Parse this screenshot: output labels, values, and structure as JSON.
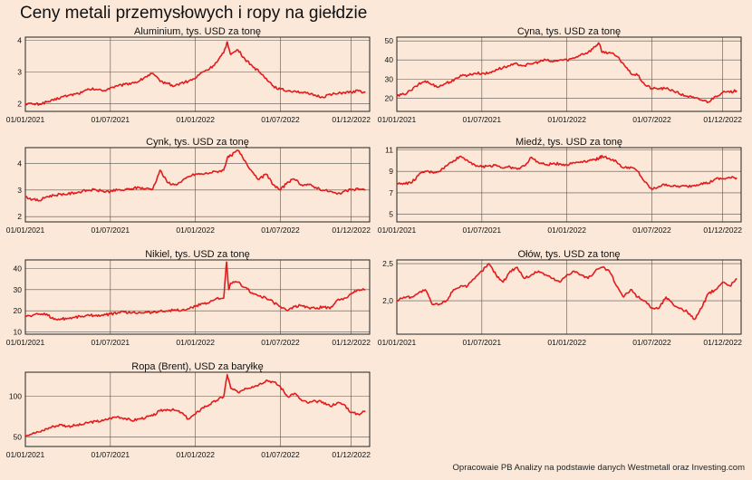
{
  "title": "Ceny metali przemysłowych i ropy na giełdzie",
  "source": "Opracowaie PB Analizy na podstawie danych Westmetall oraz Investing.com",
  "colors": {
    "line": "#e41a1c",
    "background": "#fbe8d8",
    "grid": "#555555",
    "frame": "#222222"
  },
  "chart_data": [
    {
      "type": "line",
      "title": "Aluminium, tys. USD za tonę",
      "x_ticks": [
        "01/01/2021",
        "01/07/2021",
        "01/01/2022",
        "01/07/2022",
        "01/12/2022"
      ],
      "x_tick_months": [
        0,
        6,
        12,
        18,
        23
      ],
      "x_range_months": [
        0,
        24.3
      ],
      "ylim": [
        1.75,
        4.1
      ],
      "y_ticks": [
        "2",
        "3",
        "4"
      ],
      "y_tick_values": [
        2,
        3,
        4
      ],
      "grid": true,
      "series": [
        {
          "x_months": [
            0,
            0.5,
            1,
            1.5,
            2,
            2.5,
            3,
            3.5,
            4,
            4.5,
            5,
            5.5,
            6,
            6.5,
            7,
            7.5,
            8,
            8.5,
            9,
            9.5,
            10,
            10.5,
            11,
            11.5,
            12,
            12.5,
            13,
            13.5,
            14,
            14.25,
            14.5,
            15,
            15.5,
            16,
            16.5,
            17,
            17.5,
            18,
            18.5,
            19,
            19.5,
            20,
            20.5,
            21,
            21.5,
            22,
            22.5,
            23,
            23.5,
            24
          ],
          "values": [
            2.0,
            1.98,
            1.98,
            2.05,
            2.1,
            2.2,
            2.25,
            2.3,
            2.35,
            2.45,
            2.45,
            2.4,
            2.5,
            2.55,
            2.6,
            2.65,
            2.7,
            2.85,
            2.95,
            2.7,
            2.65,
            2.55,
            2.65,
            2.7,
            2.8,
            3.0,
            3.1,
            3.3,
            3.6,
            3.95,
            3.55,
            3.7,
            3.4,
            3.2,
            3.0,
            2.8,
            2.55,
            2.45,
            2.4,
            2.4,
            2.35,
            2.3,
            2.25,
            2.2,
            2.3,
            2.3,
            2.35,
            2.35,
            2.4,
            2.35
          ]
        }
      ]
    },
    {
      "type": "line",
      "title": "Cyna, tys. USD za tonę",
      "x_ticks": [
        "01/01/2021",
        "01/07/2021",
        "01/01/2022",
        "01/07/2022",
        "01/12/2022"
      ],
      "x_tick_months": [
        0,
        6,
        12,
        18,
        23
      ],
      "x_range_months": [
        0,
        24.3
      ],
      "ylim": [
        13,
        52
      ],
      "y_ticks": [
        "20",
        "30",
        "40",
        "50"
      ],
      "y_tick_values": [
        20,
        30,
        40,
        50
      ],
      "grid": true,
      "series": [
        {
          "x_months": [
            0,
            0.5,
            1,
            1.5,
            2,
            2.5,
            3,
            3.5,
            4,
            4.5,
            5,
            5.5,
            6,
            6.5,
            7,
            7.5,
            8,
            8.5,
            9,
            9.5,
            10,
            10.5,
            11,
            11.5,
            12,
            12.5,
            13,
            13.5,
            14,
            14.25,
            14.5,
            15,
            15.5,
            16,
            16.5,
            17,
            17.5,
            18,
            18.5,
            19,
            19.5,
            20,
            20.5,
            21,
            21.5,
            22,
            22.5,
            23,
            23.5,
            24
          ],
          "values": [
            21,
            22,
            24,
            27,
            29,
            27,
            26,
            28,
            29,
            32,
            32,
            33,
            33,
            33,
            35,
            36,
            37,
            38,
            37,
            38,
            39,
            40,
            39,
            40,
            40,
            41,
            43,
            44,
            47,
            49,
            44,
            44,
            42,
            38,
            33,
            32,
            27,
            25,
            25,
            25,
            24,
            22,
            21,
            20,
            19,
            18,
            21,
            23,
            23,
            24
          ]
        }
      ]
    },
    {
      "type": "line",
      "title": "Cynk, tys. USD za tonę",
      "x_ticks": [
        "01/01/2021",
        "01/07/2021",
        "01/01/2022",
        "01/07/2022",
        "01/12/2022"
      ],
      "x_tick_months": [
        0,
        6,
        12,
        18,
        23
      ],
      "x_range_months": [
        0,
        24.3
      ],
      "ylim": [
        1.8,
        4.6
      ],
      "y_ticks": [
        "2",
        "3",
        "4"
      ],
      "y_tick_values": [
        2,
        3,
        4
      ],
      "grid": true,
      "series": [
        {
          "x_months": [
            0,
            0.5,
            1,
            1.5,
            2,
            2.5,
            3,
            3.5,
            4,
            4.5,
            5,
            5.5,
            6,
            6.5,
            7,
            7.5,
            8,
            8.5,
            9,
            9.5,
            10,
            10.5,
            11,
            11.5,
            12,
            12.5,
            13,
            13.5,
            14,
            14.25,
            14.5,
            15,
            15.5,
            16,
            16.5,
            17,
            17.5,
            18,
            18.5,
            19,
            19.5,
            20,
            20.5,
            21,
            21.5,
            22,
            22.5,
            23,
            23.5,
            24
          ],
          "values": [
            2.75,
            2.65,
            2.6,
            2.75,
            2.8,
            2.85,
            2.85,
            2.9,
            2.95,
            3.0,
            3.0,
            2.95,
            2.95,
            3.0,
            3.0,
            3.05,
            3.1,
            3.05,
            3.05,
            3.75,
            3.3,
            3.2,
            3.3,
            3.5,
            3.6,
            3.6,
            3.65,
            3.7,
            3.75,
            4.2,
            4.3,
            4.5,
            4.1,
            3.7,
            3.4,
            3.6,
            3.2,
            3.0,
            3.3,
            3.4,
            3.2,
            3.2,
            3.1,
            3.0,
            2.95,
            2.85,
            2.95,
            3.0,
            3.05,
            3.0
          ]
        }
      ]
    },
    {
      "type": "line",
      "title": "Miedź, tys. USD za tonę",
      "x_ticks": [
        "01/01/2021",
        "01/07/2021",
        "01/01/2022",
        "01/07/2022",
        "01/12/2022"
      ],
      "x_tick_months": [
        0,
        6,
        12,
        18,
        23
      ],
      "x_range_months": [
        0,
        24.3
      ],
      "ylim": [
        4.3,
        11.2
      ],
      "y_ticks": [
        "5",
        "7",
        "9",
        "11"
      ],
      "y_tick_values": [
        5,
        7,
        9,
        11
      ],
      "grid": true,
      "series": [
        {
          "x_months": [
            0,
            0.5,
            1,
            1.5,
            2,
            2.5,
            3,
            3.5,
            4,
            4.5,
            5,
            5.5,
            6,
            6.5,
            7,
            7.5,
            8,
            8.5,
            9,
            9.5,
            10,
            10.5,
            11,
            11.5,
            12,
            12.5,
            13,
            13.5,
            14,
            14.25,
            14.5,
            15,
            15.5,
            16,
            16.5,
            17,
            17.5,
            18,
            18.5,
            19,
            19.5,
            20,
            20.5,
            21,
            21.5,
            22,
            22.5,
            23,
            23.5,
            24
          ],
          "values": [
            7.8,
            7.9,
            7.9,
            8.6,
            9.0,
            8.9,
            9.0,
            9.5,
            10.0,
            10.4,
            10.0,
            9.6,
            9.4,
            9.5,
            9.6,
            9.3,
            9.4,
            9.2,
            9.5,
            10.3,
            9.8,
            9.6,
            9.7,
            9.7,
            9.6,
            9.8,
            9.9,
            10.0,
            10.1,
            10.2,
            10.4,
            10.2,
            9.9,
            9.3,
            9.4,
            9.0,
            8.0,
            7.3,
            7.6,
            7.8,
            7.6,
            7.6,
            7.6,
            7.7,
            7.9,
            7.9,
            8.3,
            8.3,
            8.4,
            8.4
          ]
        }
      ]
    },
    {
      "type": "line",
      "title": "Nikiel, tys. USD za tonę",
      "x_ticks": [
        "01/01/2021",
        "01/07/2021",
        "01/01/2022",
        "01/07/2022",
        "01/12/2022"
      ],
      "x_tick_months": [
        0,
        6,
        12,
        18,
        23
      ],
      "x_range_months": [
        0,
        24.3
      ],
      "ylim": [
        9,
        44
      ],
      "y_ticks": [
        "10",
        "20",
        "30",
        "40"
      ],
      "y_tick_values": [
        10,
        20,
        30,
        40
      ],
      "grid": true,
      "series": [
        {
          "x_months": [
            0,
            0.5,
            1,
            1.5,
            2,
            2.5,
            3,
            3.5,
            4,
            4.5,
            5,
            5.5,
            6,
            6.5,
            7,
            7.5,
            8,
            8.5,
            9,
            9.5,
            10,
            10.5,
            11,
            11.5,
            12,
            12.5,
            13,
            13.5,
            14,
            14.2,
            14.35,
            14.5,
            15,
            15.5,
            16,
            16.5,
            17,
            17.5,
            18,
            18.5,
            19,
            19.5,
            20,
            20.5,
            21,
            21.5,
            22,
            22.5,
            23,
            23.5,
            24
          ],
          "values": [
            17.5,
            17.8,
            18.5,
            18.5,
            16.0,
            16.2,
            16.5,
            17.0,
            17.5,
            17.8,
            18.0,
            17.8,
            18.5,
            19.0,
            19.5,
            19.0,
            19.2,
            19.5,
            19.2,
            19.8,
            20.0,
            20.5,
            20.0,
            21.0,
            22.0,
            23.5,
            24.0,
            26.0,
            26.0,
            43.0,
            30.0,
            33.0,
            33.5,
            31.0,
            28.5,
            27.0,
            26.0,
            24.0,
            22.0,
            20.0,
            22.0,
            22.5,
            21.5,
            21.0,
            22.0,
            21.0,
            25.0,
            26.0,
            28.0,
            30.0,
            30.0
          ]
        }
      ]
    },
    {
      "type": "line",
      "title": "Ołów, tys. USD za tonę",
      "x_ticks": [
        "01/01/2021",
        "01/07/2021",
        "01/01/2022",
        "01/07/2022",
        "01/12/2022"
      ],
      "x_tick_months": [
        0,
        6,
        12,
        18,
        23
      ],
      "x_range_months": [
        0,
        24.3
      ],
      "ylim": [
        1.55,
        2.55
      ],
      "y_ticks": [
        "2,0",
        "2,5"
      ],
      "y_tick_values": [
        2.0,
        2.5
      ],
      "grid": true,
      "series": [
        {
          "x_months": [
            0,
            0.5,
            1,
            1.5,
            2,
            2.5,
            3,
            3.5,
            4,
            4.5,
            5,
            5.5,
            6,
            6.5,
            7,
            7.5,
            8,
            8.5,
            9,
            9.5,
            10,
            10.5,
            11,
            11.5,
            12,
            12.5,
            13,
            13.5,
            14,
            14.5,
            15,
            15.5,
            16,
            16.5,
            17,
            17.5,
            18,
            18.5,
            19,
            19.5,
            20,
            20.5,
            21,
            21.5,
            22,
            22.5,
            23,
            23.5,
            24
          ],
          "values": [
            2.0,
            2.05,
            2.05,
            2.1,
            2.15,
            1.95,
            1.95,
            2.0,
            2.15,
            2.2,
            2.2,
            2.3,
            2.4,
            2.5,
            2.35,
            2.25,
            2.4,
            2.45,
            2.3,
            2.35,
            2.4,
            2.35,
            2.3,
            2.25,
            2.35,
            2.4,
            2.35,
            2.3,
            2.4,
            2.45,
            2.4,
            2.2,
            2.05,
            2.15,
            2.05,
            2.0,
            1.9,
            1.9,
            2.05,
            1.95,
            1.9,
            1.85,
            1.75,
            1.9,
            2.1,
            2.15,
            2.25,
            2.2,
            2.3
          ]
        }
      ]
    },
    {
      "type": "line",
      "title": "Ropa (Brent), USD za baryłkę",
      "x_ticks": [
        "01/01/2021",
        "01/07/2021",
        "01/01/2022",
        "01/07/2022",
        "01/12/2022"
      ],
      "x_tick_months": [
        0,
        6,
        12,
        18,
        23
      ],
      "x_range_months": [
        0,
        24.3
      ],
      "ylim": [
        38,
        130
      ],
      "y_ticks": [
        "50",
        "100"
      ],
      "y_tick_values": [
        50,
        100
      ],
      "grid": true,
      "series": [
        {
          "x_months": [
            0,
            0.5,
            1,
            1.5,
            2,
            2.5,
            3,
            3.5,
            4,
            4.5,
            5,
            5.5,
            6,
            6.5,
            7,
            7.5,
            8,
            8.5,
            9,
            9.5,
            10,
            10.5,
            11,
            11.5,
            12,
            12.5,
            13,
            13.5,
            14,
            14.25,
            14.5,
            15,
            15.5,
            16,
            16.5,
            17,
            17.5,
            18,
            18.5,
            19,
            19.5,
            20,
            20.5,
            21,
            21.5,
            22,
            22.5,
            23,
            23.5,
            24
          ],
          "values": [
            52,
            54,
            56,
            60,
            63,
            65,
            63,
            64,
            65,
            68,
            69,
            70,
            73,
            75,
            73,
            70,
            72,
            74,
            76,
            82,
            84,
            83,
            80,
            72,
            78,
            86,
            90,
            95,
            100,
            127,
            110,
            105,
            110,
            112,
            115,
            120,
            118,
            112,
            100,
            104,
            95,
            92,
            94,
            93,
            88,
            92,
            90,
            80,
            78,
            82
          ]
        }
      ]
    }
  ]
}
